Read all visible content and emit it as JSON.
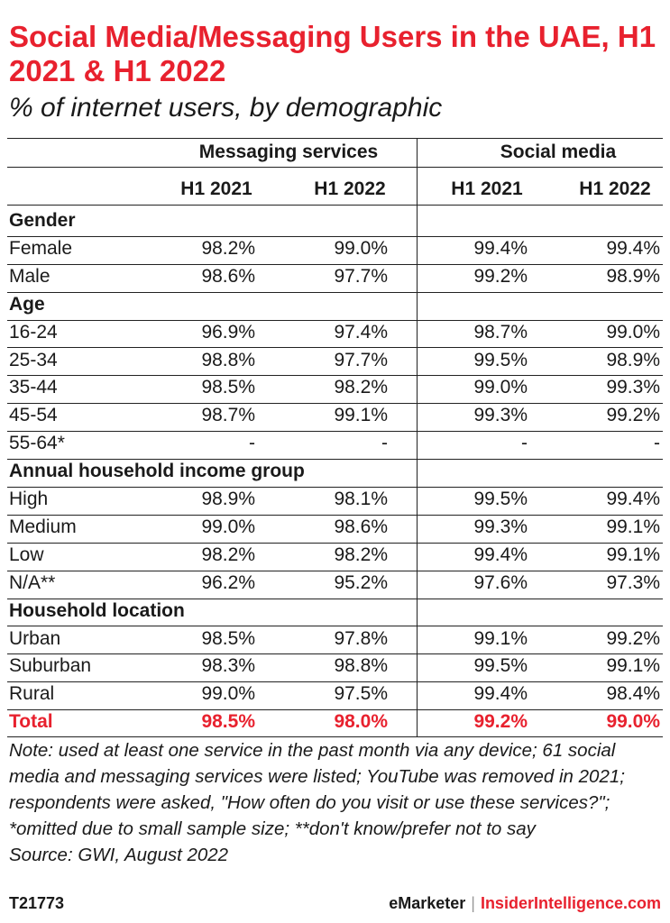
{
  "title": "Social Media/Messaging Users in the UAE, H1 2021 & H1 2022",
  "subtitle": "% of internet users, by demographic",
  "chart_data": {
    "type": "table",
    "column_groups": [
      "Messaging services",
      "Social media"
    ],
    "columns": [
      "H1 2021",
      "H1 2022",
      "H1 2021",
      "H1 2022"
    ],
    "sections": [
      {
        "name": "Gender",
        "rows": [
          {
            "label": "Female",
            "values": [
              "98.2%",
              "99.0%",
              "99.4%",
              "99.4%"
            ]
          },
          {
            "label": "Male",
            "values": [
              "98.6%",
              "97.7%",
              "99.2%",
              "98.9%"
            ]
          }
        ]
      },
      {
        "name": "Age",
        "rows": [
          {
            "label": "16-24",
            "values": [
              "96.9%",
              "97.4%",
              "98.7%",
              "99.0%"
            ]
          },
          {
            "label": "25-34",
            "values": [
              "98.8%",
              "97.7%",
              "99.5%",
              "98.9%"
            ]
          },
          {
            "label": "35-44",
            "values": [
              "98.5%",
              "98.2%",
              "99.0%",
              "99.3%"
            ]
          },
          {
            "label": "45-54",
            "values": [
              "98.7%",
              "99.1%",
              "99.3%",
              "99.2%"
            ]
          },
          {
            "label": "55-64*",
            "values": [
              "-",
              "-",
              "-",
              "-"
            ]
          }
        ]
      },
      {
        "name": "Annual household income group",
        "rows": [
          {
            "label": "High",
            "values": [
              "98.9%",
              "98.1%",
              "99.5%",
              "99.4%"
            ]
          },
          {
            "label": "Medium",
            "values": [
              "99.0%",
              "98.6%",
              "99.3%",
              "99.1%"
            ]
          },
          {
            "label": "Low",
            "values": [
              "98.2%",
              "98.2%",
              "99.4%",
              "99.1%"
            ]
          },
          {
            "label": "N/A**",
            "values": [
              "96.2%",
              "95.2%",
              "97.6%",
              "97.3%"
            ]
          }
        ]
      },
      {
        "name": "Household location",
        "rows": [
          {
            "label": "Urban",
            "values": [
              "98.5%",
              "97.8%",
              "99.1%",
              "99.2%"
            ]
          },
          {
            "label": "Suburban",
            "values": [
              "98.3%",
              "98.8%",
              "99.5%",
              "99.1%"
            ]
          },
          {
            "label": "Rural",
            "values": [
              "99.0%",
              "97.5%",
              "99.4%",
              "98.4%"
            ]
          }
        ]
      }
    ],
    "total": {
      "label": "Total",
      "values": [
        "98.5%",
        "98.0%",
        "99.2%",
        "99.0%"
      ]
    }
  },
  "note": "Note: used at least one service in the past month via any device; 61 social media and messaging services were listed; YouTube was removed in 2021; respondents were asked, \"How often do you visit or use these services?\"; *omitted due to small sample size; **don't know/prefer not to say",
  "source": "Source: GWI, August 2022",
  "footer": {
    "chart_id": "T21773",
    "brand": "eMarketer",
    "separator": "|",
    "brand2": "InsiderIntelligence.com"
  },
  "colors": {
    "accent": "#e8212e",
    "text": "#1a1a1a"
  }
}
